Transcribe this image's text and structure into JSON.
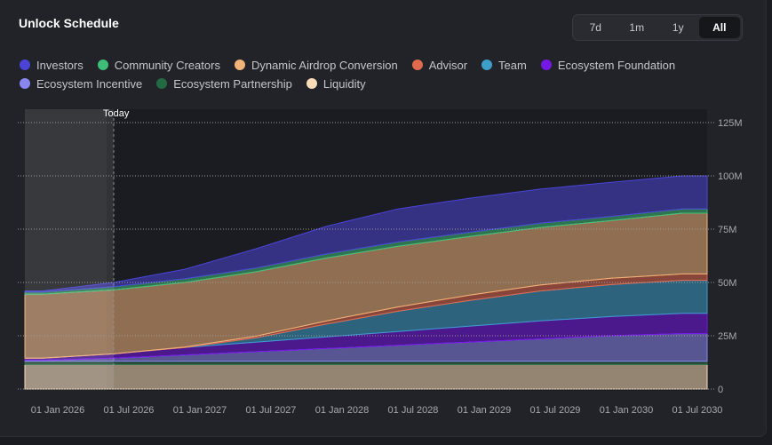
{
  "header": {
    "title": "Unlock Schedule"
  },
  "ranges": [
    {
      "label": "7d",
      "active": false
    },
    {
      "label": "1m",
      "active": false
    },
    {
      "label": "1y",
      "active": false
    },
    {
      "label": "All",
      "active": true
    }
  ],
  "colors": {
    "investors": "#4b44d6",
    "community_creators": "#3fbe79",
    "dynamic_airdrop": "#f0b37a",
    "advisor": "#e06a4e",
    "team": "#3d9ec9",
    "ecosystem_foundation": "#7418e8",
    "ecosystem_incentive": "#8a86f0",
    "ecosystem_partnership": "#226a43",
    "liquidity": "#f8dcb8",
    "today_line": "#8e8f94",
    "grid": "#9a9ba0"
  },
  "chart_data": {
    "type": "area",
    "stacked": true,
    "title": "Unlock Schedule",
    "today_label": "Today",
    "today_x": "2026-07-01",
    "x_tick_labels": [
      "01 Jan 2026",
      "01 Jul 2026",
      "01 Jan 2027",
      "01 Jul 2027",
      "01 Jan 2028",
      "01 Jul 2028",
      "01 Jan 2029",
      "01 Jul 2029",
      "01 Jan 2030",
      "01 Jul 2030"
    ],
    "x": [
      "2026-01-01",
      "2026-07-01",
      "2027-01-01",
      "2027-07-01",
      "2028-01-01",
      "2028-07-01",
      "2029-01-01",
      "2029-07-01",
      "2030-01-01",
      "2030-07-01"
    ],
    "y_tick_labels": [
      "0",
      "25M",
      "50M",
      "75M",
      "100M",
      "125M"
    ],
    "ylim": [
      0,
      125
    ],
    "y_unit": "M",
    "grid": true,
    "legend_position": "top-left",
    "series": [
      {
        "name": "Liquidity",
        "color_key": "liquidity",
        "values": [
          11.5,
          11.5,
          11.5,
          11.5,
          11.5,
          11.5,
          11.5,
          11.5,
          11.5,
          11.5
        ]
      },
      {
        "name": "Ecosystem Partnership",
        "color_key": "ecosystem_partnership",
        "values": [
          1.5,
          1.5,
          1.5,
          1.5,
          1.5,
          1.5,
          1.5,
          1.5,
          1.5,
          1.5
        ]
      },
      {
        "name": "Ecosystem Incentive",
        "color_key": "ecosystem_incentive",
        "values": [
          0.5,
          1.5,
          3,
          4.5,
          6,
          7.5,
          9,
          10.5,
          12,
          13
        ]
      },
      {
        "name": "Ecosystem Foundation",
        "color_key": "ecosystem_foundation",
        "values": [
          1,
          2,
          3.5,
          4.5,
          5.5,
          6.5,
          7.5,
          8.5,
          9,
          9.5
        ]
      },
      {
        "name": "Team",
        "color_key": "team",
        "values": [
          0,
          0,
          0,
          2,
          6,
          9.5,
          12,
          14,
          15,
          15.5
        ]
      },
      {
        "name": "Advisor",
        "color_key": "advisor",
        "values": [
          0,
          0,
          0.2,
          0.8,
          1.5,
          2,
          2.5,
          2.8,
          3,
          3
        ]
      },
      {
        "name": "Dynamic Airdrop Conversion",
        "color_key": "dynamic_airdrop",
        "values": [
          30,
          30,
          30.3,
          30.2,
          29.5,
          28.5,
          27.5,
          27,
          27,
          28.5
        ]
      },
      {
        "name": "Community Creators",
        "color_key": "community_creators",
        "values": [
          1,
          1.5,
          1.7,
          1.8,
          1.9,
          2,
          2,
          2,
          2,
          2
        ]
      },
      {
        "name": "Investors",
        "color_key": "investors",
        "values": [
          0.5,
          2,
          4.5,
          9,
          13,
          15.5,
          16,
          16,
          16,
          15.5
        ]
      }
    ]
  },
  "legend_rows": [
    [
      "investors",
      "community_creators",
      "dynamic_airdrop",
      "advisor",
      "team",
      "ecosystem_foundation"
    ],
    [
      "ecosystem_incentive",
      "ecosystem_partnership",
      "liquidity"
    ]
  ],
  "legend_labels": {
    "investors": "Investors",
    "community_creators": "Community Creators",
    "dynamic_airdrop": "Dynamic Airdrop Conversion",
    "advisor": "Advisor",
    "team": "Team",
    "ecosystem_foundation": "Ecosystem Foundation",
    "ecosystem_incentive": "Ecosystem Incentive",
    "ecosystem_partnership": "Ecosystem Partnership",
    "liquidity": "Liquidity"
  }
}
